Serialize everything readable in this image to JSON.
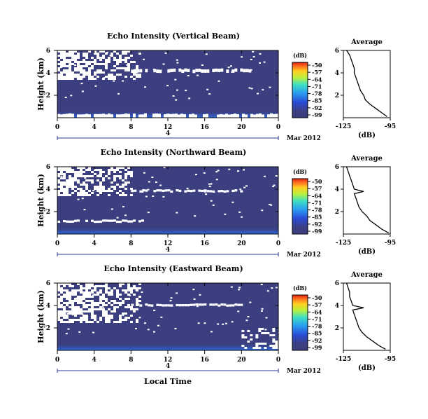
{
  "chart_data": [
    {
      "type": "heatmap",
      "title": "Echo Intensity (Vertical Beam)",
      "ylabel": "Height (km)",
      "x_ticks": [
        "0",
        "4",
        "8",
        "12",
        "16",
        "20",
        "0"
      ],
      "y_ticks": [
        "6",
        "4",
        "2"
      ],
      "xlim": [
        0,
        24
      ],
      "ylim": [
        0,
        6
      ],
      "date_marker": "4",
      "date_label": "Mar 2012",
      "colorbar": {
        "unit": "(dB)",
        "ticks": [
          "-50",
          "-57",
          "-64",
          "-71",
          "-78",
          "-85",
          "-92",
          "-99"
        ]
      },
      "layers": [
        {
          "name": "white_clear_air_gaps",
          "x": [
            0,
            9
          ],
          "y": [
            3.5,
            6
          ]
        },
        {
          "name": "echo_line",
          "x": [
            8,
            21
          ],
          "y": [
            4.1,
            4.4
          ]
        },
        {
          "name": "strong_surface_echo",
          "x": [
            0,
            24
          ],
          "y": [
            0,
            0.4
          ]
        }
      ],
      "average_profile": {
        "title": "Average",
        "xlabel": "(dB)",
        "x_ticks": [
          "-125",
          "-95"
        ],
        "y_ticks": [
          "6",
          "4",
          "2"
        ],
        "xlim": [
          -125,
          -95
        ],
        "ylim": [
          0,
          6
        ],
        "height": [
          0.1,
          0.4,
          0.8,
          1.2,
          1.6,
          2.0,
          2.4,
          2.8,
          3.2,
          3.6,
          4.0,
          4.4,
          4.8,
          5.2,
          5.6,
          6.0
        ],
        "db": [
          -97,
          -100,
          -104,
          -108,
          -111,
          -112,
          -114,
          -115,
          -116,
          -117,
          -118,
          -118,
          -119,
          -120,
          -121,
          -123
        ]
      }
    },
    {
      "type": "heatmap",
      "title": "Echo Intensity (Northward Beam)",
      "ylabel": "Height (km)",
      "x_ticks": [
        "0",
        "4",
        "8",
        "12",
        "16",
        "20",
        "0"
      ],
      "y_ticks": [
        "6",
        "4",
        "2"
      ],
      "xlim": [
        0,
        24
      ],
      "ylim": [
        0,
        6
      ],
      "date_marker": "4",
      "date_label": "Mar 2012",
      "colorbar": {
        "unit": "(dB)",
        "ticks": [
          "-50",
          "-57",
          "-64",
          "-71",
          "-78",
          "-85",
          "-92",
          "-99"
        ]
      },
      "layers": [
        {
          "name": "white_clear_air_gaps",
          "x": [
            0,
            8
          ],
          "y": [
            3.5,
            6
          ]
        },
        {
          "name": "echo_line",
          "x": [
            8,
            20
          ],
          "y": [
            3.8,
            4.0
          ]
        },
        {
          "name": "low_echo_line",
          "x": [
            0,
            10
          ],
          "y": [
            1.1,
            1.3
          ]
        }
      ],
      "average_profile": {
        "title": "Average",
        "xlabel": "(dB)",
        "x_ticks": [
          "-125",
          "-95"
        ],
        "y_ticks": [
          "6",
          "4",
          "2"
        ],
        "xlim": [
          -125,
          -95
        ],
        "ylim": [
          0,
          6
        ],
        "height": [
          0.1,
          0.4,
          0.8,
          1.2,
          1.6,
          2.0,
          2.4,
          2.8,
          3.2,
          3.6,
          3.8,
          4.0,
          4.4,
          4.8,
          5.2,
          5.6,
          6.0
        ],
        "db": [
          -96,
          -100,
          -104,
          -108,
          -110,
          -113,
          -115,
          -116,
          -117,
          -118,
          -112,
          -118,
          -119,
          -120,
          -121,
          -122,
          -123
        ]
      }
    },
    {
      "type": "heatmap",
      "title": "Echo Intensity (Eastward Beam)",
      "ylabel": "Height (km)",
      "xlabel": "Local Time",
      "x_ticks": [
        "0",
        "4",
        "8",
        "12",
        "16",
        "20",
        "0"
      ],
      "y_ticks": [
        "6",
        "4",
        "2"
      ],
      "xlim": [
        0,
        24
      ],
      "ylim": [
        0,
        6
      ],
      "date_marker": "4",
      "date_label": "Mar 2012",
      "colorbar": {
        "unit": "(dB)",
        "ticks": [
          "-50",
          "-57",
          "-64",
          "-71",
          "-78",
          "-85",
          "-92",
          "-99"
        ]
      },
      "layers": [
        {
          "name": "white_clear_air_gaps",
          "x": [
            0,
            9
          ],
          "y": [
            2.5,
            6
          ]
        },
        {
          "name": "echo_line",
          "x": [
            8,
            20
          ],
          "y": [
            4.0,
            4.2
          ]
        },
        {
          "name": "right_gap",
          "x": [
            20,
            24
          ],
          "y": [
            0.3,
            2.0
          ]
        }
      ],
      "average_profile": {
        "title": "Average",
        "xlabel": "(dB)",
        "x_ticks": [
          "-125",
          "-95"
        ],
        "y_ticks": [
          "6",
          "4",
          "2"
        ],
        "xlim": [
          -125,
          -95
        ],
        "ylim": [
          0,
          6
        ],
        "height": [
          0.1,
          0.4,
          0.8,
          1.2,
          1.6,
          2.0,
          2.4,
          2.8,
          3.2,
          3.6,
          3.8,
          4.0,
          4.4,
          4.8,
          5.2,
          5.6,
          6.0
        ],
        "db": [
          -98,
          -102,
          -106,
          -110,
          -113,
          -115,
          -116,
          -117,
          -118,
          -119,
          -112,
          -119,
          -120,
          -121,
          -121,
          -122,
          -123
        ]
      }
    }
  ]
}
